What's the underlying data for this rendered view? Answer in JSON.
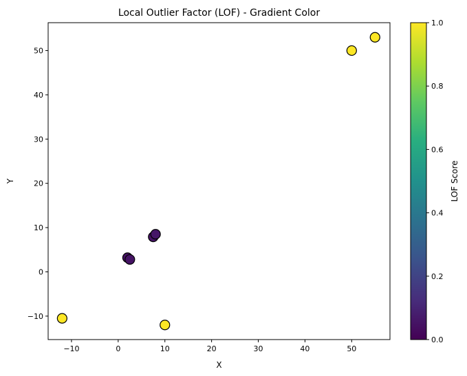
{
  "chart_data": {
    "type": "scatter",
    "title": "Local Outlier Factor (LOF) - Gradient Color",
    "xlabel": "X",
    "ylabel": "Y",
    "xlim": [
      -15,
      58.2
    ],
    "ylim": [
      -15.3,
      56.3
    ],
    "xticks": [
      -10,
      0,
      10,
      20,
      30,
      40,
      50
    ],
    "yticks": [
      -10,
      0,
      10,
      20,
      30,
      40,
      50
    ],
    "tick_labels": {
      "x": [
        "−10",
        "0",
        "10",
        "20",
        "30",
        "40",
        "50"
      ],
      "y": [
        "−10",
        "0",
        "10",
        "20",
        "30",
        "40",
        "50"
      ]
    },
    "grid": false,
    "colormap": "viridis",
    "colorbar": {
      "label": "LOF Score",
      "range": [
        0.0,
        1.0
      ],
      "ticks": [
        0.0,
        0.2,
        0.4,
        0.6,
        0.8,
        1.0
      ],
      "tick_labels": [
        "0.0",
        "0.2",
        "0.4",
        "0.6",
        "0.8",
        "1.0"
      ]
    },
    "points": [
      {
        "x": 2.0,
        "y": 3.2,
        "score": 0.05
      },
      {
        "x": 2.5,
        "y": 2.8,
        "score": 0.05
      },
      {
        "x": 7.5,
        "y": 7.9,
        "score": 0.05
      },
      {
        "x": 8.0,
        "y": 8.5,
        "score": 0.06
      },
      {
        "x": 50.0,
        "y": 50.0,
        "score": 1.0
      },
      {
        "x": 55.0,
        "y": 53.0,
        "score": 1.0
      },
      {
        "x": -12.0,
        "y": -10.5,
        "score": 1.0
      },
      {
        "x": 10.0,
        "y": -12.0,
        "score": 1.0
      }
    ],
    "marker_edge_color": "#000000"
  }
}
